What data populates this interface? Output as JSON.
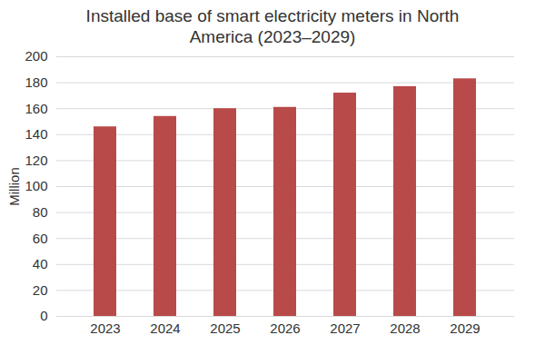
{
  "chart_data": {
    "type": "bar",
    "title": "Installed base of smart electricity meters in North America (2023–2029)",
    "y_label": "Million",
    "categories": [
      "2023",
      "2024",
      "2025",
      "2026",
      "2027",
      "2028",
      "2029"
    ],
    "values": [
      146,
      154,
      160,
      161,
      172,
      177,
      183
    ],
    "color": "#b94a4a",
    "ylim": [
      0,
      200
    ],
    "yticks": [
      0,
      20,
      40,
      60,
      80,
      100,
      120,
      140,
      160,
      180,
      200
    ],
    "grid": true
  }
}
